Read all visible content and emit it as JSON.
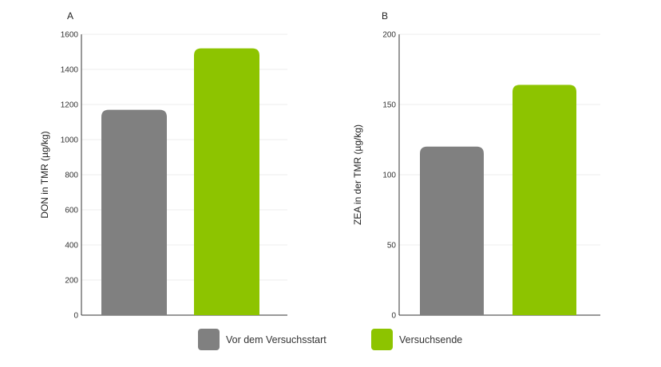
{
  "chart_data": [
    {
      "type": "bar",
      "panel_label": "A",
      "ylabel": "DON in TMR (µg/kg)",
      "ylim": [
        0,
        1600
      ],
      "yticks": [
        0,
        200,
        400,
        600,
        800,
        1000,
        1200,
        1400,
        1600
      ],
      "grid": true,
      "series": [
        {
          "name": "Vor dem Versuchsstart",
          "value": 1170,
          "color": "#808080"
        },
        {
          "name": "Versuchsende",
          "value": 1520,
          "color": "#8dc400"
        }
      ]
    },
    {
      "type": "bar",
      "panel_label": "B",
      "ylabel": "ZEA in der TMR (µg/kg)",
      "ylim": [
        0,
        200
      ],
      "yticks": [
        0,
        50,
        100,
        150,
        200
      ],
      "grid": true,
      "series": [
        {
          "name": "Vor dem Versuchsstart",
          "value": 120,
          "color": "#808080"
        },
        {
          "name": "Versuchsende",
          "value": 164,
          "color": "#8dc400"
        }
      ]
    }
  ],
  "legend": {
    "placement": "bottom-center",
    "items": [
      {
        "label": "Vor dem Versuchsstart",
        "color": "#808080"
      },
      {
        "label": "Versuchsende",
        "color": "#8dc400"
      }
    ]
  }
}
